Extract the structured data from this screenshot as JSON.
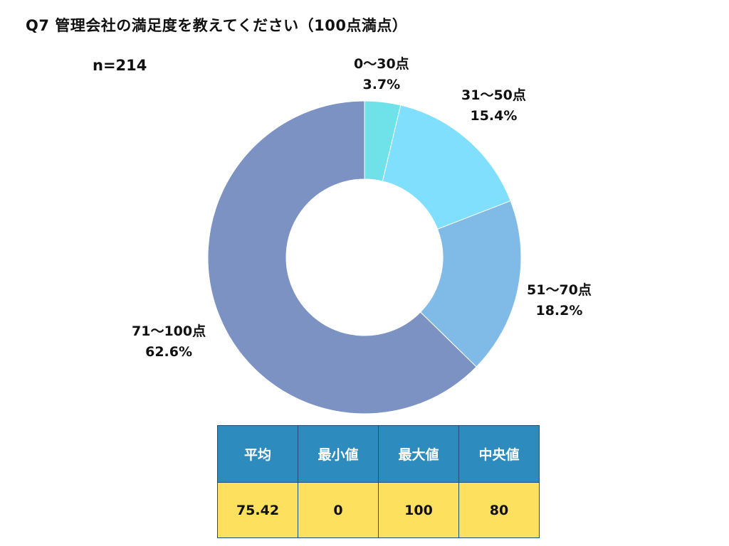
{
  "title": "Q7 管理会社の満足度を教えてください（100点満点）",
  "sample_size": "n=214",
  "chart_data": {
    "type": "pie",
    "title": "Q7 管理会社の満足度を教えてください（100点満点）",
    "donut": true,
    "categories": [
      "0〜30点",
      "31〜50点",
      "51〜70点",
      "71〜100点"
    ],
    "values": [
      3.7,
      15.4,
      18.2,
      62.6
    ],
    "value_labels": [
      "3.7%",
      "15.4%",
      "18.2%",
      "62.6%"
    ],
    "colors": [
      "#6ee2e8",
      "#7fdffd",
      "#80bbe8",
      "#7b92c3"
    ],
    "start_angle": "12 o'clock",
    "direction": "clockwise"
  },
  "stats_table": {
    "headers": [
      "平均",
      "最小値",
      "最大値",
      "中央値"
    ],
    "values": [
      "75.42",
      "0",
      "100",
      "80"
    ],
    "header_color": "#2e8bbd",
    "value_color": "#fde15e"
  }
}
